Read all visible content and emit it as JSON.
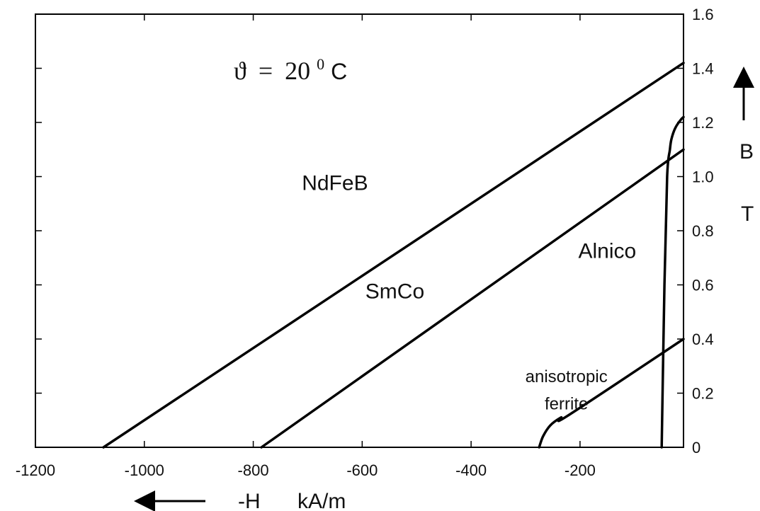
{
  "chart_data": {
    "type": "line",
    "title": "",
    "condition": {
      "symbol": "ϑ",
      "equals": "=",
      "value": "20",
      "superscript": "0",
      "unit": "C"
    },
    "xlabel": {
      "symbol": "-H",
      "unit": "kA/m"
    },
    "ylabel": {
      "symbol": "B",
      "unit": "T"
    },
    "xlim": [
      -1200,
      -10
    ],
    "ylim": [
      0,
      1.6
    ],
    "x_ticks": [
      -1200,
      -1000,
      -800,
      -600,
      -400,
      -200
    ],
    "x_tick_labels": [
      "-1200",
      "-1000",
      "-800",
      "-600",
      "-400",
      "-200"
    ],
    "y_ticks": [
      0,
      0.2,
      0.4,
      0.6,
      0.8,
      1.0,
      1.2,
      1.4,
      1.6
    ],
    "y_tick_labels": [
      "0",
      "0.2",
      "0.4",
      "0.6",
      "0.8",
      "1.0",
      "1.2",
      "1.4",
      "1.6"
    ],
    "grid": false,
    "legend": "none",
    "series": [
      {
        "name": "NdFeB",
        "x": [
          -1075,
          -10
        ],
        "y": [
          0,
          1.42
        ]
      },
      {
        "name": "SmCo",
        "x": [
          -785,
          -10
        ],
        "y": [
          0,
          1.1
        ]
      },
      {
        "name": "Alnico",
        "x": [
          -50,
          -45,
          -40,
          -35,
          -32,
          -25,
          -15,
          -10
        ],
        "y": [
          0,
          0.6,
          1.0,
          1.1,
          1.14,
          1.18,
          1.21,
          1.22
        ]
      },
      {
        "name": "anisotropic ferrite",
        "x": [
          -275,
          -268,
          -255,
          -235,
          -220,
          -10
        ],
        "y": [
          0,
          0.04,
          0.08,
          0.11,
          0.12,
          0.4
        ]
      }
    ],
    "annotations": [
      {
        "text": "NdFeB",
        "x": -650,
        "y": 0.95
      },
      {
        "text": "SmCo",
        "x": -540,
        "y": 0.55
      },
      {
        "text": "Alnico",
        "x": -150,
        "y": 0.7
      },
      {
        "text": "anisotropic",
        "x": -225,
        "y": 0.24
      },
      {
        "text": "ferrite",
        "x": -225,
        "y": 0.14
      }
    ]
  }
}
